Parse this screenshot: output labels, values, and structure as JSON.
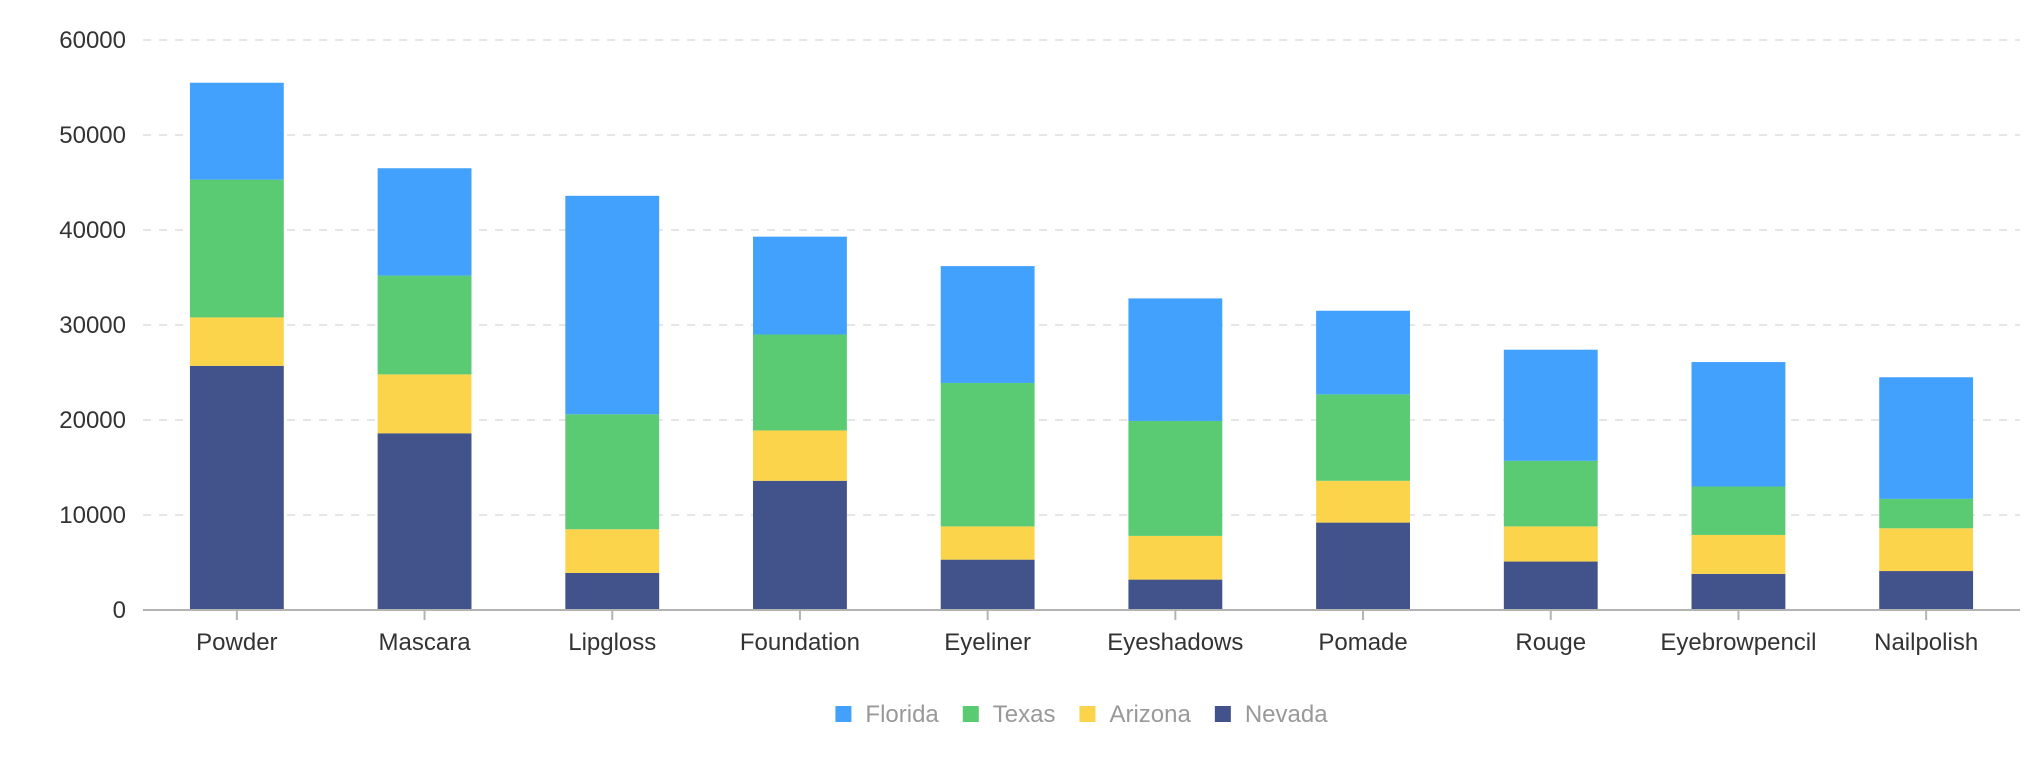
{
  "chart_data": {
    "type": "bar",
    "stacked": true,
    "categories": [
      "Powder",
      "Mascara",
      "Lipgloss",
      "Foundation",
      "Eyeliner",
      "Eyeshadows",
      "Pomade",
      "Rouge",
      "Eyebrowpencil",
      "Nailpolish"
    ],
    "series": [
      {
        "name": "Nevada",
        "color": "#42528a",
        "values": [
          25700,
          18600,
          3900,
          13600,
          5300,
          3200,
          9200,
          5100,
          3800,
          4100
        ]
      },
      {
        "name": "Arizona",
        "color": "#fbd44b",
        "values": [
          5100,
          6200,
          4600,
          5300,
          3500,
          4600,
          4400,
          3700,
          4100,
          4500
        ]
      },
      {
        "name": "Texas",
        "color": "#5acb73",
        "values": [
          14500,
          10400,
          12100,
          10100,
          15100,
          12100,
          9100,
          6900,
          5100,
          3100
        ]
      },
      {
        "name": "Florida",
        "color": "#42a1fd",
        "values": [
          10200,
          11300,
          23000,
          10300,
          12300,
          12900,
          8800,
          11700,
          13100,
          12800
        ]
      }
    ],
    "ylim": [
      0,
      60000
    ],
    "yticks": [
      "0",
      "10000",
      "20000",
      "30000",
      "40000",
      "50000",
      "60000"
    ],
    "legend": {
      "position": "bottom",
      "order": [
        "Florida",
        "Texas",
        "Arizona",
        "Nevada"
      ]
    },
    "grid": true
  }
}
